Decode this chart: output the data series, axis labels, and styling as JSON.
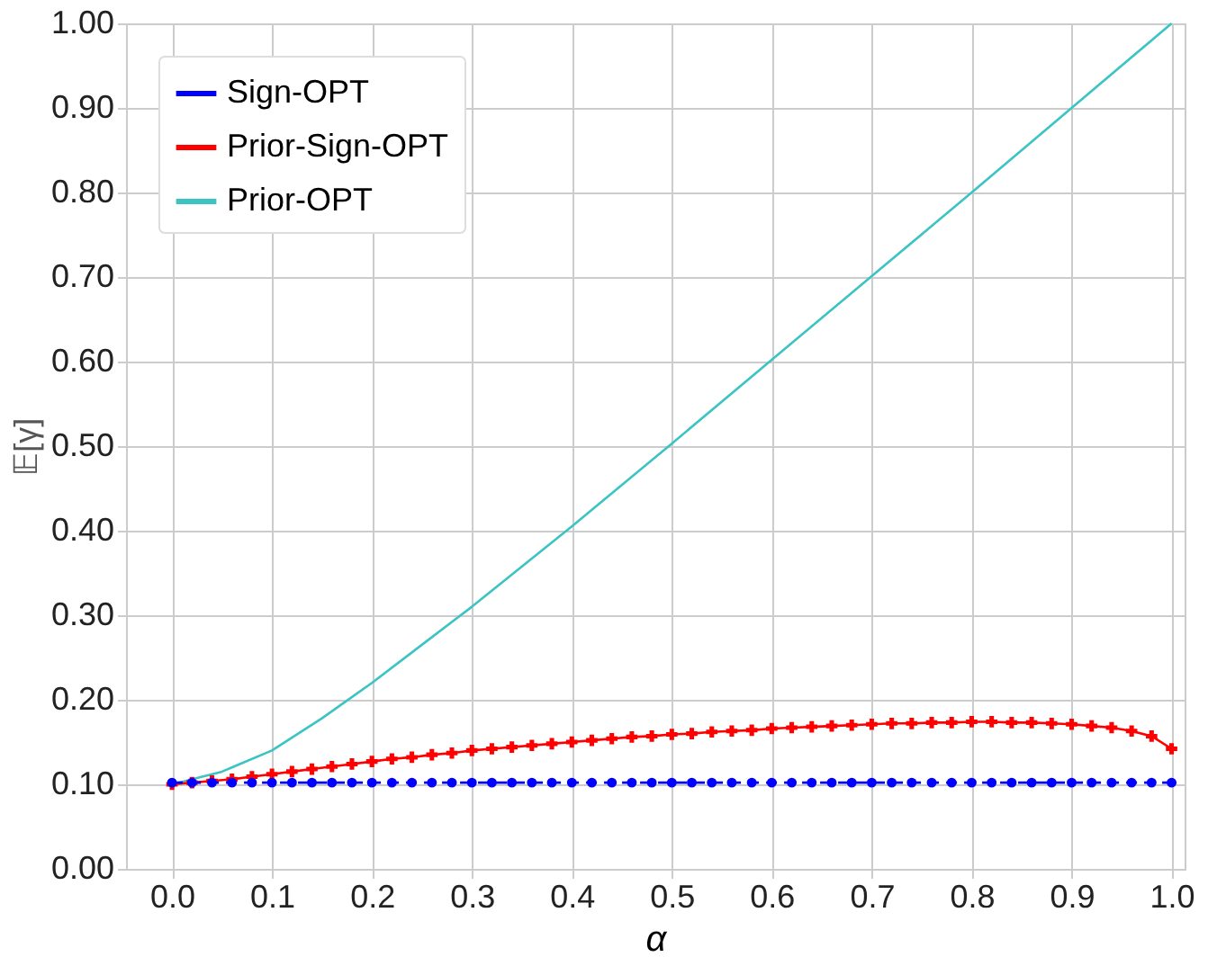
{
  "chart_data": {
    "type": "line",
    "xlabel": "α",
    "ylabel": "𝔼[γ]",
    "xlim": [
      -0.046,
      1.013
    ],
    "ylim": [
      0,
      1
    ],
    "xticks": [
      {
        "value": 0,
        "label": "0.0"
      },
      {
        "value": 0.1,
        "label": "0.1"
      },
      {
        "value": 0.2,
        "label": "0.2"
      },
      {
        "value": 0.3,
        "label": "0.3"
      },
      {
        "value": 0.4,
        "label": "0.4"
      },
      {
        "value": 0.5,
        "label": "0.5"
      },
      {
        "value": 0.6,
        "label": "0.6"
      },
      {
        "value": 0.7,
        "label": "0.7"
      },
      {
        "value": 0.8,
        "label": "0.8"
      },
      {
        "value": 0.9,
        "label": "0.9"
      },
      {
        "value": 1,
        "label": "1.0"
      }
    ],
    "yticks": [
      {
        "value": 0,
        "label": "0.00"
      },
      {
        "value": 0.1,
        "label": "0.10"
      },
      {
        "value": 0.2,
        "label": "0.20"
      },
      {
        "value": 0.3,
        "label": "0.30"
      },
      {
        "value": 0.4,
        "label": "0.40"
      },
      {
        "value": 0.5,
        "label": "0.50"
      },
      {
        "value": 0.6,
        "label": "0.60"
      },
      {
        "value": 0.7,
        "label": "0.70"
      },
      {
        "value": 0.8,
        "label": "0.80"
      },
      {
        "value": 0.9,
        "label": "0.90"
      },
      {
        "value": 1,
        "label": "1.00"
      }
    ],
    "grid": true,
    "legend": "top left",
    "x": [
      0,
      0.02,
      0.04,
      0.06,
      0.08,
      0.1,
      0.12,
      0.14,
      0.16,
      0.18,
      0.2,
      0.22,
      0.24,
      0.26,
      0.28,
      0.3,
      0.32,
      0.34,
      0.36,
      0.38,
      0.4,
      0.42,
      0.44,
      0.46,
      0.48,
      0.5,
      0.52,
      0.54,
      0.56,
      0.58,
      0.6,
      0.62,
      0.64,
      0.66,
      0.68,
      0.7,
      0.72,
      0.74,
      0.76,
      0.78,
      0.8,
      0.82,
      0.84,
      0.86,
      0.88,
      0.9,
      0.92,
      0.94,
      0.96,
      0.98,
      1
    ],
    "series": [
      {
        "name": "Sign-OPT",
        "color": "#0000ff",
        "marker": "circle",
        "line_style": "dashed",
        "values": [
          0.102,
          0.102,
          0.102,
          0.102,
          0.102,
          0.102,
          0.102,
          0.102,
          0.102,
          0.102,
          0.102,
          0.102,
          0.102,
          0.102,
          0.102,
          0.102,
          0.102,
          0.102,
          0.102,
          0.102,
          0.102,
          0.102,
          0.102,
          0.102,
          0.102,
          0.102,
          0.102,
          0.102,
          0.102,
          0.102,
          0.102,
          0.102,
          0.102,
          0.102,
          0.102,
          0.102,
          0.102,
          0.102,
          0.102,
          0.102,
          0.102,
          0.102,
          0.102,
          0.102,
          0.102,
          0.102,
          0.102,
          0.102,
          0.102,
          0.102,
          0.102
        ]
      },
      {
        "name": "Prior-Sign-OPT",
        "color": "#ff0000",
        "marker": "cross",
        "line_style": "solid",
        "values": [
          0.1,
          0.102,
          0.104,
          0.106,
          0.109,
          0.112,
          0.115,
          0.118,
          0.121,
          0.124,
          0.127,
          0.13,
          0.132,
          0.135,
          0.137,
          0.14,
          0.142,
          0.144,
          0.146,
          0.148,
          0.15,
          0.152,
          0.154,
          0.156,
          0.157,
          0.159,
          0.16,
          0.162,
          0.163,
          0.164,
          0.166,
          0.167,
          0.168,
          0.169,
          0.17,
          0.171,
          0.172,
          0.172,
          0.173,
          0.173,
          0.174,
          0.174,
          0.173,
          0.173,
          0.172,
          0.171,
          0.169,
          0.167,
          0.163,
          0.157,
          0.142
        ]
      },
      {
        "name": "Prior-OPT",
        "color": "#3cc3c3",
        "marker": "none",
        "line_style": "solid",
        "x": [
          0,
          0.05,
          0.1,
          0.15,
          0.2,
          0.25,
          0.3,
          0.4,
          0.5,
          0.6,
          0.7,
          0.8,
          0.9,
          1
        ],
        "values": [
          0.1,
          0.115,
          0.14,
          0.178,
          0.22,
          0.265,
          0.31,
          0.405,
          0.503,
          0.602,
          0.701,
          0.8,
          0.9,
          1
        ]
      }
    ]
  }
}
